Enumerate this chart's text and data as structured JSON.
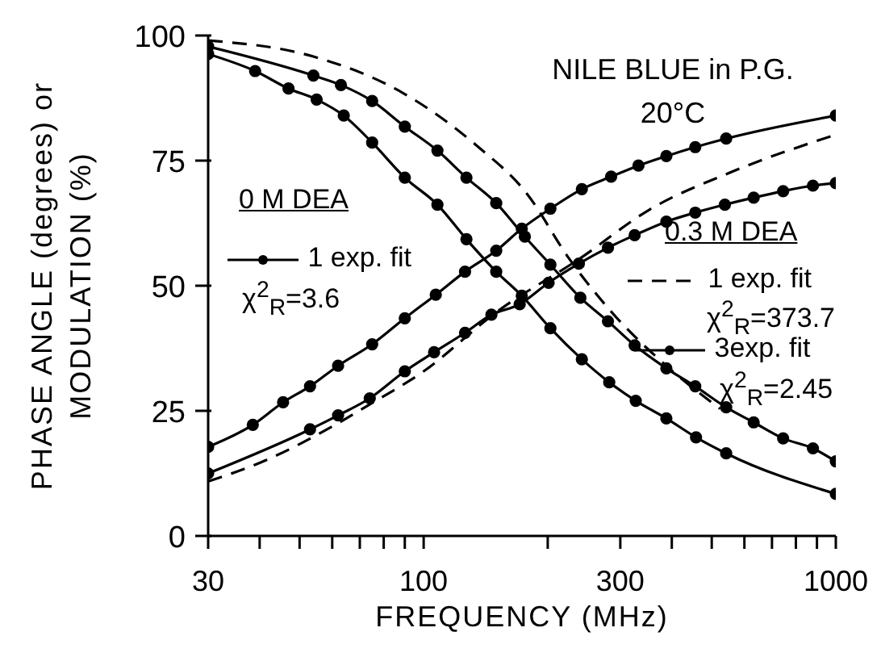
{
  "chart_data": {
    "type": "line",
    "title": "NILE BLUE in P.G.",
    "subtitle": "20°C",
    "xlabel": "FREQUENCY (MHz)",
    "ylabel": "PHASE ANGLE (degrees) or MODULATION (%)",
    "log": "x",
    "xlim": [
      30,
      1000
    ],
    "xticks": [
      30,
      {
        "value": 40,
        "label": null
      },
      {
        "value": 50,
        "label": null
      },
      {
        "value": 60,
        "label": null
      },
      {
        "value": 70,
        "label": null
      },
      {
        "value": 80,
        "label": null
      },
      {
        "value": 90,
        "label": null
      },
      100,
      {
        "value": 200,
        "label": null
      },
      300,
      {
        "value": 400,
        "label": null
      },
      {
        "value": 500,
        "label": null
      },
      {
        "value": 600,
        "label": null
      },
      {
        "value": 700,
        "label": null
      },
      {
        "value": 800,
        "label": null
      },
      {
        "value": 900,
        "label": null
      },
      1000
    ],
    "ylim": [
      0,
      100
    ],
    "yticks": [
      0,
      25,
      50,
      75,
      100
    ],
    "grid": false,
    "legend": "left",
    "annotations": [
      "0 M DEA",
      "χ$^{2}$$_{R}$=3.6",
      "0.3 M DEA",
      "χ$^{2}$$_{R}$=373.7",
      "χ$^{2}$$_{R}$=2.45"
    ],
    "series": [
      {
        "name": "1 exp. fit",
        "color": "#000000",
        "marker": "circle",
        "line_style": "solid",
        "x": [
          30,
          38.5,
          45.6,
          53,
          62,
          75,
          90,
          107,
          126,
          150,
          173,
          203,
          242,
          285,
          332,
          388,
          456,
          542,
          1000
        ],
        "values": [
          17.8,
          22.2,
          26.7,
          29.9,
          34.0,
          38.3,
          43.5,
          48.2,
          52.8,
          57.0,
          61.4,
          65.4,
          69.3,
          71.8,
          74.0,
          75.9,
          77.7,
          79.4,
          84.0
        ]
      },
      {
        "color": "#000000",
        "marker": "circle",
        "line_style": "solid",
        "x": [
          30,
          39,
          47,
          55,
          64,
          75,
          90,
          108,
          127,
          150,
          173,
          203,
          242,
          282,
          327,
          388,
          458,
          542,
          1000
        ],
        "values": [
          96.3,
          92.9,
          89.4,
          87.2,
          84.0,
          78.6,
          71.6,
          66.2,
          59.3,
          52.8,
          48.0,
          41.5,
          35.3,
          30.7,
          27.0,
          23.5,
          19.7,
          16.5,
          8.4
        ]
      },
      {
        "name": "1 exp. fit",
        "color": "#000000",
        "marker": "none",
        "line_style": "dashed",
        "x": [
          30,
          40,
          61,
          73,
          100,
          150,
          240,
          353,
          557,
          1000
        ],
        "values": [
          10.9,
          14.6,
          22.2,
          26.0,
          32.9,
          44.7,
          55.5,
          65.2,
          72.7,
          80.2
        ]
      },
      {
        "color": "#000000",
        "marker": "none",
        "line_style": "dashed",
        "x": [
          30,
          54,
          90,
          134,
          178,
          225,
          286,
          388,
          524
        ],
        "values": [
          99.0,
          95.8,
          88.3,
          78.1,
          68.4,
          55.5,
          44.7,
          34.0,
          25.4
        ]
      },
      {
        "name": "3exp. fit",
        "color": "#000000",
        "marker": "circle",
        "line_style": "solid",
        "x": [
          30,
          53,
          62,
          74,
          90,
          106,
          126,
          146,
          171,
          201,
          238,
          280,
          325,
          388,
          456,
          538,
          632,
          745,
          880,
          1000
        ],
        "values": [
          12.5,
          21.3,
          24.1,
          27.5,
          32.9,
          36.7,
          40.6,
          44.2,
          46.3,
          50.6,
          54.4,
          57.6,
          60.1,
          62.8,
          64.6,
          66.2,
          67.6,
          68.9,
          70.0,
          70.5
        ]
      },
      {
        "color": "#000000",
        "marker": "circle",
        "line_style": "solid",
        "x": [
          30,
          54,
          63,
          75,
          90,
          108,
          127,
          150,
          176,
          203,
          240,
          280,
          325,
          388,
          456,
          542,
          632,
          745,
          880,
          1000
        ],
        "values": [
          97.8,
          92.0,
          90.1,
          86.9,
          81.8,
          77.0,
          71.6,
          66.5,
          59.8,
          54.2,
          47.6,
          42.9,
          38.1,
          33.5,
          29.9,
          25.7,
          22.7,
          19.5,
          17.5,
          14.9
        ]
      }
    ]
  }
}
